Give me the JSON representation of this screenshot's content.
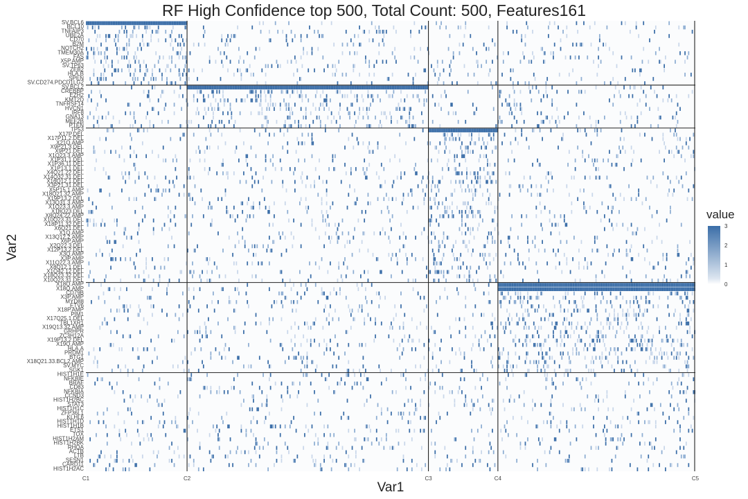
{
  "chart_data": {
    "type": "heatmap",
    "title": "RF High Confidence top 500, Total Count: 500, Features161",
    "xlabel": "Var1",
    "ylabel": "Var2",
    "legend": {
      "title": "value",
      "position": "right",
      "ticks": [
        "3",
        "2",
        "1",
        "0"
      ],
      "range": [
        0,
        3
      ]
    },
    "x_ticks": [
      "C1",
      "C2",
      "C3",
      "C4",
      "C5"
    ],
    "columns_total": 500,
    "cluster_columns": {
      "C1": 0,
      "C2": 83,
      "C3": 281,
      "C4": 338,
      "C5": 500
    },
    "y_groups": [
      [
        "SV.BCL6",
        "BCL10",
        "TNFAIP3",
        "UBE2A",
        "CD70",
        "B2M",
        "NOTCH2",
        "TMEM30A",
        "FAS",
        "X5P.AMP",
        "SV.TP63",
        "ZEB2",
        "HLA.B",
        "SPEN",
        "SV.CD274.PDCD1LG2"
      ],
      [
        "SV.BCL2",
        "CREBBP",
        "EZH2",
        "KMT2D",
        "TNFRSF14",
        "HVCN1",
        "IRF8",
        "GNA13",
        "MEF2B",
        "PTEN"
      ],
      [
        "TP53",
        "X17P.DEL",
        "X17P11.2.DEL",
        "X21Q.AMP",
        "X9P21.3.DEL",
        "X9P21.DEL",
        "X1Q23.3.AMP",
        "X1P31.1.DEL",
        "X1P36.11.DEL",
        "X1P13.1.DEL",
        "X4Q21.22.DEL",
        "X14Q32.31.DEL",
        "X16Q12.1.DEL",
        "X3P21.31.DEL",
        "X5P15.1.AMP",
        "X18Q21.32.AMP",
        "X19P13.2.DEL",
        "X13Q31.3.AMP",
        "X1Q23.3.AMP",
        "X18Q23.DEL",
        "X8Q24.22.AMP",
        "X10Q23.31.DEL",
        "X18P11.32.DEL",
        "X6Q21.DEL",
        "X1Q.AMP",
        "X13Q12.2.AMP",
        "X6P.AMP",
        "X2Q22.3.DEL",
        "X12P13.2.DEL",
        "X3Q.AMP",
        "X3P.AMP",
        "X11Q22.3.AMP",
        "X8Q12.1.DEL",
        "X1Q42.12.DEL",
        "X18Q23.32.DEL",
        "X10Q23.31.DEL"
      ],
      [
        "X18Q.AMP",
        "X18Q.AMP",
        "CD79B",
        "X3P.AMP",
        "MYD88",
        "ETV6",
        "X18P.AMP",
        "PIM1",
        "X17Q25.1.DEL",
        "TBL1XR1",
        "X19Q13.32.AMP",
        "GRHPR",
        "ZC3H12A",
        "X19P13.2.DEL",
        "X19Q.AMP",
        "HLA.A",
        "PRDM1",
        "BTG1",
        "X18Q21.33.BCL2.AMP",
        "SV.MYC",
        "SGK1"
      ],
      [
        "HIST1H1E",
        "NFKBIE",
        "BRAF",
        "CD83",
        "NFKBIA",
        "CCND3",
        "HIST1H2BC",
        "STAT3",
        "HIST1H1C",
        "ZFP36L1",
        "KLHL6",
        "HIST1H1D",
        "HIST1H1B",
        "ETS1",
        "TOX",
        "HIST1H2AM",
        "HIST1H2BK",
        "RHOA",
        "ACTB",
        "LTB",
        "SESN1",
        "CARD11",
        "HIST1H2AC"
      ]
    ],
    "block_density": {
      "enriched": [
        [
          "g0",
          "C1"
        ],
        [
          "g1",
          "C2"
        ],
        [
          "g2",
          "C3"
        ],
        [
          "g3",
          "C4"
        ]
      ],
      "enriched_header_value": 3,
      "background_value": 0
    },
    "grid": false
  },
  "colors": {
    "high": "#3b6ea8",
    "mid": "#b7c8e0",
    "low": "#ffffff",
    "divider": "#222222"
  }
}
